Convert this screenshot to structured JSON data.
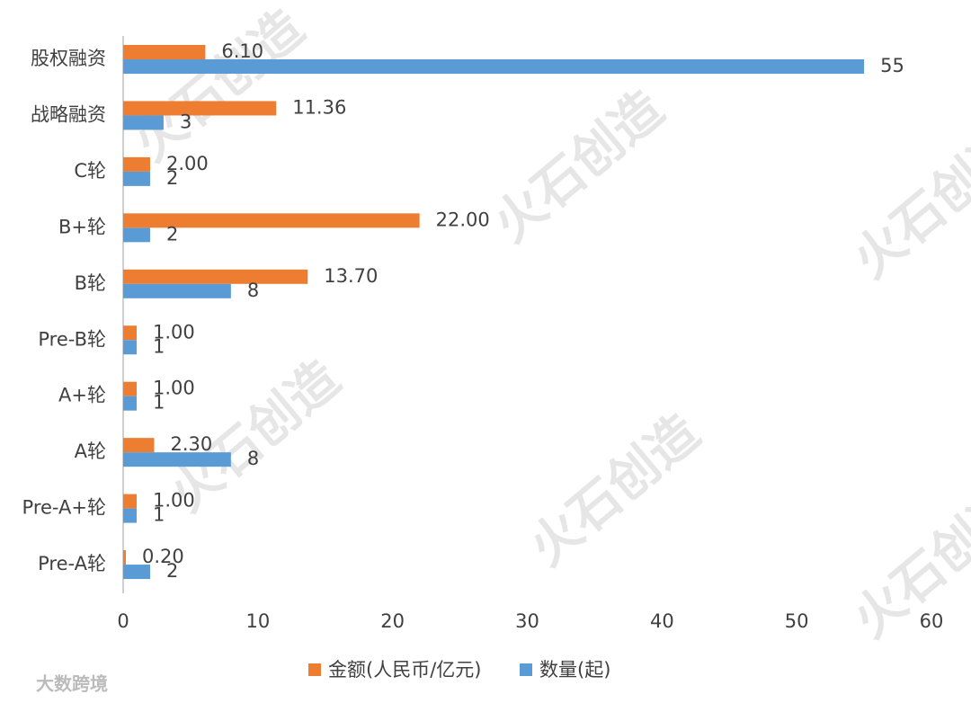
{
  "chart_data": {
    "type": "hbar",
    "categories": [
      "股权融资",
      "战略融资",
      "C轮",
      "B+轮",
      "B轮",
      "Pre-B轮",
      "A+轮",
      "A轮",
      "Pre-A+轮",
      "Pre-A轮"
    ],
    "series": [
      {
        "name": "金额(人民币/亿元)",
        "color": "#ed7d31",
        "values": [
          6.1,
          11.36,
          2,
          22,
          13.7,
          1,
          1,
          2.3,
          1,
          0.2
        ],
        "value_labels": [
          "6.10",
          "11.36",
          "2.00",
          "22.00",
          "13.70",
          "1.00",
          "1.00",
          "2.30",
          "1.00",
          "0.20"
        ]
      },
      {
        "name": "数量(起)",
        "color": "#5b9bd5",
        "values": [
          55,
          3,
          2,
          2,
          8,
          1,
          1,
          8,
          1,
          2
        ]
      }
    ],
    "xlim": [
      0,
      60
    ],
    "xticks": [
      0,
      10,
      20,
      30,
      40,
      50,
      60
    ],
    "grid": false,
    "watermark": "火石创造",
    "source_mark": "大数跨境"
  }
}
